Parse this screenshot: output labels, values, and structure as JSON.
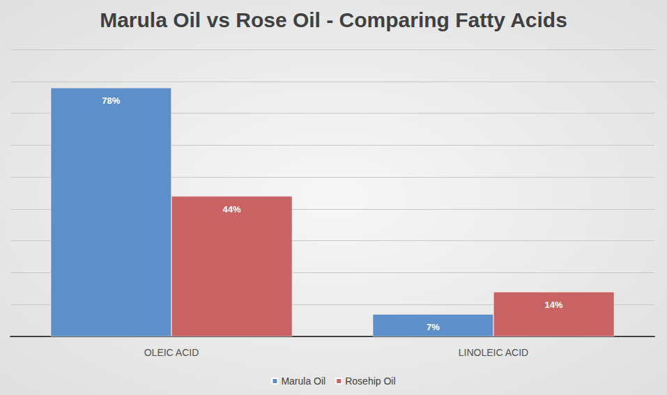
{
  "chart_data": {
    "type": "bar",
    "title": "Marula Oil vs Rose Oil - Comparing Fatty Acids",
    "categories": [
      "OLEIC ACID",
      "LINOLEIC ACID"
    ],
    "series": [
      {
        "name": "Marula Oil",
        "color": "#5f8fc9",
        "values": [
          78,
          7
        ]
      },
      {
        "name": "Rosehip Oil",
        "color": "#c96262",
        "values": [
          44,
          14
        ]
      }
    ],
    "value_labels": [
      [
        "78%",
        "7%"
      ],
      [
        "44%",
        "14%"
      ]
    ],
    "ylim": [
      0,
      90
    ],
    "yticks": [
      0,
      10,
      20,
      30,
      40,
      50,
      60,
      70,
      80,
      90
    ],
    "grid": true,
    "legend": "bottom",
    "data_labels": true,
    "tick_labels": "x"
  }
}
